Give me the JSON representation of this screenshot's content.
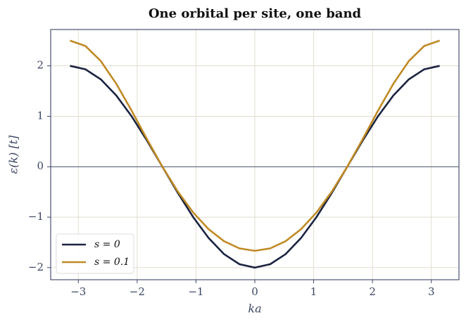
{
  "chart_data": {
    "type": "line",
    "title": "One orbital per site, one band",
    "xlabel": "ka",
    "ylabel": "ε(k)  [t]",
    "x": [
      -3.142,
      -2.88,
      -2.618,
      -2.356,
      -2.094,
      -1.833,
      -1.571,
      -1.309,
      -1.047,
      -0.785,
      -0.524,
      -0.262,
      0,
      0.262,
      0.524,
      0.785,
      1.047,
      1.309,
      1.571,
      1.833,
      2.094,
      2.356,
      2.618,
      2.88,
      3.142
    ],
    "series": [
      {
        "name": "s = 0",
        "color": "#1a2340",
        "values": [
          2,
          1.932,
          1.732,
          1.414,
          1,
          0.518,
          0,
          -0.518,
          -1,
          -1.414,
          -1.732,
          -1.932,
          -2,
          -1.932,
          -1.732,
          -1.414,
          -1,
          -0.518,
          0,
          0.518,
          1,
          1.414,
          1.732,
          1.932,
          2
        ]
      },
      {
        "name": "s = 0.1",
        "color": "#c08a24",
        "values": [
          2.5,
          2.394,
          2.095,
          1.647,
          1.111,
          0.546,
          0,
          -0.492,
          -0.909,
          -1.239,
          -1.476,
          -1.619,
          -1.667,
          -1.619,
          -1.476,
          -1.239,
          -0.909,
          -0.492,
          0,
          0.546,
          1.111,
          1.647,
          2.095,
          2.394,
          2.5
        ]
      }
    ],
    "xlim": [
      -3.47,
      3.47
    ],
    "ylim": [
      -2.24,
      2.72
    ],
    "xticks": [
      {
        "value": -3,
        "label": "−3"
      },
      {
        "value": -2,
        "label": "−2"
      },
      {
        "value": -1,
        "label": "−1"
      },
      0,
      1,
      2,
      3
    ],
    "yticks": [
      {
        "value": -2,
        "label": "−2"
      },
      {
        "value": -1,
        "label": "−1"
      },
      0,
      1,
      2
    ],
    "grid": true,
    "legend": "lower left"
  }
}
